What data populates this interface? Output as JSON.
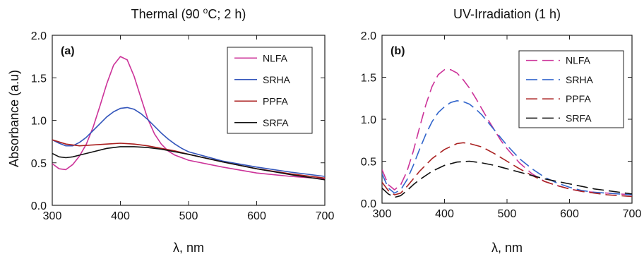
{
  "figure": {
    "ylabel": "Absorbance (a.u)"
  },
  "chart_data": [
    {
      "type": "line",
      "panel_label": "(a)",
      "title": "Thermal (90 °C; 2 h)",
      "title_parts": {
        "before": "Thermal (90 ",
        "sup": "o",
        "after": "C; 2 h)"
      },
      "xlabel": "λ, nm",
      "ylabel": "Absorbance (a.u)",
      "xlim": [
        300,
        700
      ],
      "ylim": [
        0,
        2.0
      ],
      "xticks": [
        "300",
        "400",
        "500",
        "600",
        "700"
      ],
      "yticks": [
        "0.0",
        "0.5",
        "1.0",
        "1.5",
        "2.0"
      ],
      "grid": false,
      "legend_position": "top-right",
      "line_style": "solid",
      "series": [
        {
          "name": "NLFA",
          "color": "#cc3399",
          "x": [
            300,
            310,
            320,
            330,
            340,
            350,
            360,
            370,
            380,
            390,
            400,
            410,
            420,
            430,
            440,
            450,
            460,
            470,
            480,
            490,
            500,
            550,
            600,
            650,
            700
          ],
          "y": [
            0.49,
            0.43,
            0.42,
            0.48,
            0.58,
            0.72,
            0.92,
            1.17,
            1.43,
            1.65,
            1.75,
            1.71,
            1.52,
            1.27,
            1.02,
            0.84,
            0.72,
            0.64,
            0.59,
            0.56,
            0.53,
            0.45,
            0.38,
            0.34,
            0.31
          ]
        },
        {
          "name": "SRHA",
          "color": "#3355bb",
          "x": [
            300,
            310,
            320,
            330,
            340,
            350,
            360,
            370,
            380,
            390,
            400,
            410,
            420,
            430,
            440,
            450,
            460,
            470,
            480,
            490,
            500,
            550,
            600,
            650,
            700
          ],
          "y": [
            0.77,
            0.73,
            0.7,
            0.7,
            0.74,
            0.8,
            0.88,
            0.96,
            1.04,
            1.1,
            1.14,
            1.15,
            1.13,
            1.08,
            1.01,
            0.93,
            0.85,
            0.78,
            0.72,
            0.67,
            0.63,
            0.52,
            0.45,
            0.39,
            0.34
          ]
        },
        {
          "name": "PPFA",
          "color": "#aa1e1e",
          "x": [
            300,
            320,
            340,
            360,
            380,
            400,
            420,
            440,
            460,
            480,
            500,
            550,
            600,
            650,
            700
          ],
          "y": [
            0.77,
            0.72,
            0.7,
            0.71,
            0.72,
            0.73,
            0.72,
            0.7,
            0.67,
            0.64,
            0.6,
            0.51,
            0.43,
            0.37,
            0.32
          ]
        },
        {
          "name": "SRFA",
          "color": "#111111",
          "x": [
            300,
            310,
            320,
            330,
            340,
            360,
            380,
            400,
            420,
            440,
            460,
            480,
            500,
            550,
            600,
            650,
            700
          ],
          "y": [
            0.61,
            0.57,
            0.56,
            0.57,
            0.59,
            0.63,
            0.67,
            0.69,
            0.69,
            0.68,
            0.66,
            0.63,
            0.6,
            0.51,
            0.43,
            0.36,
            0.3
          ]
        }
      ]
    },
    {
      "type": "line",
      "panel_label": "(b)",
      "title": "UV-Irradiation (1 h)",
      "xlabel": "λ, nm",
      "ylabel": "",
      "xlim": [
        300,
        700
      ],
      "ylim": [
        0,
        2.0
      ],
      "xticks": [
        "300",
        "400",
        "500",
        "600",
        "700"
      ],
      "yticks": [
        "0.0",
        "0.5",
        "1.0",
        "1.5",
        "2.0"
      ],
      "grid": false,
      "legend_position": "top-right",
      "line_style": "dashed",
      "series": [
        {
          "name": "NLFA",
          "color": "#cc3399",
          "x": [
            300,
            310,
            320,
            330,
            340,
            350,
            360,
            370,
            380,
            390,
            400,
            410,
            420,
            430,
            440,
            450,
            460,
            470,
            480,
            490,
            500,
            520,
            540,
            560,
            580,
            600,
            620,
            640,
            660,
            680,
            700
          ],
          "y": [
            0.4,
            0.22,
            0.16,
            0.22,
            0.38,
            0.62,
            0.9,
            1.17,
            1.39,
            1.53,
            1.59,
            1.59,
            1.55,
            1.47,
            1.37,
            1.25,
            1.12,
            0.99,
            0.87,
            0.75,
            0.65,
            0.48,
            0.35,
            0.26,
            0.21,
            0.17,
            0.14,
            0.13,
            0.12,
            0.11,
            0.1
          ]
        },
        {
          "name": "SRHA",
          "color": "#3366cc",
          "x": [
            300,
            310,
            320,
            330,
            340,
            350,
            360,
            370,
            380,
            390,
            400,
            410,
            420,
            430,
            440,
            450,
            460,
            470,
            480,
            490,
            500,
            520,
            540,
            560,
            580,
            600,
            620,
            640,
            660,
            680,
            700
          ],
          "y": [
            0.35,
            0.18,
            0.12,
            0.16,
            0.28,
            0.45,
            0.64,
            0.82,
            0.97,
            1.08,
            1.15,
            1.2,
            1.22,
            1.21,
            1.18,
            1.12,
            1.05,
            0.96,
            0.87,
            0.78,
            0.69,
            0.53,
            0.41,
            0.31,
            0.24,
            0.19,
            0.15,
            0.13,
            0.12,
            0.11,
            0.1
          ]
        },
        {
          "name": "PPFA",
          "color": "#aa2222",
          "x": [
            300,
            310,
            320,
            330,
            340,
            350,
            360,
            380,
            400,
            420,
            430,
            440,
            460,
            480,
            500,
            520,
            540,
            560,
            580,
            600,
            620,
            640,
            660,
            680,
            700
          ],
          "y": [
            0.25,
            0.15,
            0.1,
            0.12,
            0.2,
            0.29,
            0.38,
            0.53,
            0.64,
            0.71,
            0.72,
            0.71,
            0.67,
            0.59,
            0.5,
            0.41,
            0.33,
            0.26,
            0.21,
            0.17,
            0.14,
            0.12,
            0.1,
            0.09,
            0.08
          ]
        },
        {
          "name": "SRFA",
          "color": "#111111",
          "x": [
            300,
            310,
            320,
            330,
            340,
            350,
            360,
            380,
            400,
            420,
            440,
            460,
            480,
            500,
            520,
            540,
            560,
            580,
            600,
            620,
            640,
            660,
            680,
            700
          ],
          "y": [
            0.18,
            0.11,
            0.07,
            0.09,
            0.15,
            0.22,
            0.28,
            0.38,
            0.45,
            0.49,
            0.5,
            0.48,
            0.45,
            0.41,
            0.37,
            0.33,
            0.29,
            0.26,
            0.23,
            0.2,
            0.17,
            0.15,
            0.13,
            0.11
          ]
        }
      ]
    }
  ]
}
